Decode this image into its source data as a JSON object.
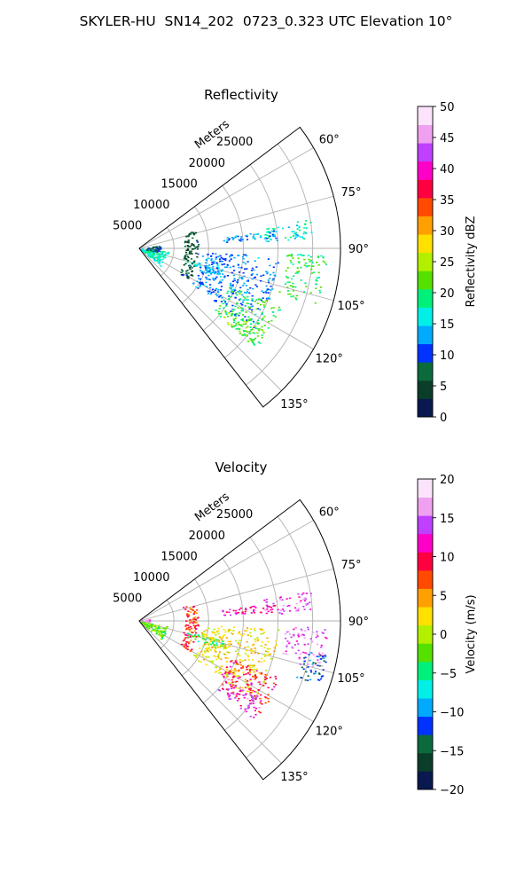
{
  "figure": {
    "title": "SKYLER-HU  SN14_202  0723_0.323 UTC Elevation 10°"
  },
  "chart_data": [
    {
      "type": "heatmap",
      "subtype": "polar-sector-ppi",
      "title": "Reflectivity",
      "r_axis": {
        "label": "Meters",
        "ticks": [
          5000,
          10000,
          15000,
          20000,
          25000
        ],
        "tick_labels": [
          "5000",
          "10000",
          "15000",
          "20000",
          "25000"
        ],
        "rlim": [
          0,
          29000
        ]
      },
      "theta_axis": {
        "unit": "degrees",
        "range": [
          53,
          142
        ],
        "ticks": [
          60,
          75,
          90,
          105,
          120,
          135
        ],
        "tick_labels": [
          "60°",
          "75°",
          "90°",
          "105°",
          "120°",
          "135°"
        ]
      },
      "grid": true,
      "colorbar": {
        "label": "Reflectivity dBZ",
        "range": [
          0,
          50
        ],
        "ticks": [
          0,
          5,
          10,
          15,
          20,
          25,
          30,
          35,
          40,
          45,
          50
        ],
        "tick_labels": [
          "0",
          "5",
          "10",
          "15",
          "20",
          "25",
          "30",
          "35",
          "40",
          "45",
          "50"
        ],
        "placement": "right",
        "colormap": [
          "#0a1850",
          "#0b3e2a",
          "#0b6b3c",
          "#0033ff",
          "#00aaff",
          "#00f0e8",
          "#00f07a",
          "#55e000",
          "#b2f000",
          "#ffe000",
          "#ffa000",
          "#ff4a00",
          "#ff0040",
          "#ff00c8",
          "#c040ff",
          "#f0a0f0",
          "#fbe4fb"
        ]
      },
      "regions": [
        {
          "r": [
            300,
            4200
          ],
          "theta": [
            95,
            130
          ],
          "value": 17
        },
        {
          "r": [
            1000,
            3000
          ],
          "theta": [
            82,
            100
          ],
          "value": 8
        },
        {
          "r": [
            7000,
            12500
          ],
          "theta": [
            103,
            109
          ],
          "value": 15
        },
        {
          "r": [
            6500,
            8500
          ],
          "theta": [
            72,
            122
          ],
          "value": 6
        },
        {
          "r": [
            9000,
            20000
          ],
          "theta": [
            93,
            125
          ],
          "value": 12
        },
        {
          "r": [
            14000,
            22000
          ],
          "theta": [
            112,
            130
          ],
          "value": 20
        },
        {
          "r": [
            15000,
            21500
          ],
          "theta": [
            123,
            131
          ],
          "value": 22
        },
        {
          "r": [
            21000,
            27000
          ],
          "theta": [
            92,
            108
          ],
          "value": 20
        },
        {
          "r": [
            18000,
            25000
          ],
          "theta": [
            80,
            87
          ],
          "value": 17
        },
        {
          "r": [
            12000,
            20000
          ],
          "theta": [
            82,
            86
          ],
          "value": 13
        }
      ]
    },
    {
      "type": "heatmap",
      "subtype": "polar-sector-ppi",
      "title": "Velocity",
      "r_axis": {
        "label": "Meters",
        "ticks": [
          5000,
          10000,
          15000,
          20000,
          25000
        ],
        "tick_labels": [
          "5000",
          "10000",
          "15000",
          "20000",
          "25000"
        ],
        "rlim": [
          0,
          29000
        ]
      },
      "theta_axis": {
        "unit": "degrees",
        "range": [
          53,
          142
        ],
        "ticks": [
          60,
          75,
          90,
          105,
          120,
          135
        ],
        "tick_labels": [
          "60°",
          "75°",
          "90°",
          "105°",
          "120°",
          "135°"
        ]
      },
      "grid": true,
      "colorbar": {
        "label": "Velocity (m/s)",
        "range": [
          -20,
          20
        ],
        "ticks": [
          -20,
          -15,
          -10,
          -5,
          0,
          5,
          10,
          15,
          20
        ],
        "tick_labels": [
          "−20",
          "−15",
          "−10",
          "−5",
          "0",
          "5",
          "10",
          "15",
          "20"
        ],
        "placement": "right",
        "colormap": [
          "#0a1850",
          "#0b3e2a",
          "#0b6b3c",
          "#0033ff",
          "#00aaff",
          "#00f0e8",
          "#00f07a",
          "#55e000",
          "#b2f000",
          "#ffe000",
          "#ffa000",
          "#ff4a00",
          "#ff0040",
          "#ff00c8",
          "#c040ff",
          "#f0a0f0",
          "#fbe4fb"
        ]
      },
      "regions": [
        {
          "r": [
            300,
            1500
          ],
          "theta": [
            80,
            98
          ],
          "value": 15
        },
        {
          "r": [
            300,
            4200
          ],
          "theta": [
            100,
            130
          ],
          "value": -2
        },
        {
          "r": [
            6500,
            8500
          ],
          "theta": [
            72,
            122
          ],
          "value": 8
        },
        {
          "r": [
            7000,
            12500
          ],
          "theta": [
            103,
            109
          ],
          "value": -4
        },
        {
          "r": [
            9000,
            20000
          ],
          "theta": [
            93,
            125
          ],
          "value": 2
        },
        {
          "r": [
            14000,
            22000
          ],
          "theta": [
            112,
            128
          ],
          "value": 9
        },
        {
          "r": [
            15000,
            21500
          ],
          "theta": [
            123,
            131
          ],
          "value": 13
        },
        {
          "r": [
            21000,
            27000
          ],
          "theta": [
            92,
            105
          ],
          "value": 15
        },
        {
          "r": [
            24000,
            27500
          ],
          "theta": [
            100,
            110
          ],
          "value": -12
        },
        {
          "r": [
            18000,
            25000
          ],
          "theta": [
            80,
            87
          ],
          "value": 14
        },
        {
          "r": [
            12000,
            20000
          ],
          "theta": [
            82,
            86
          ],
          "value": 12
        }
      ]
    }
  ]
}
